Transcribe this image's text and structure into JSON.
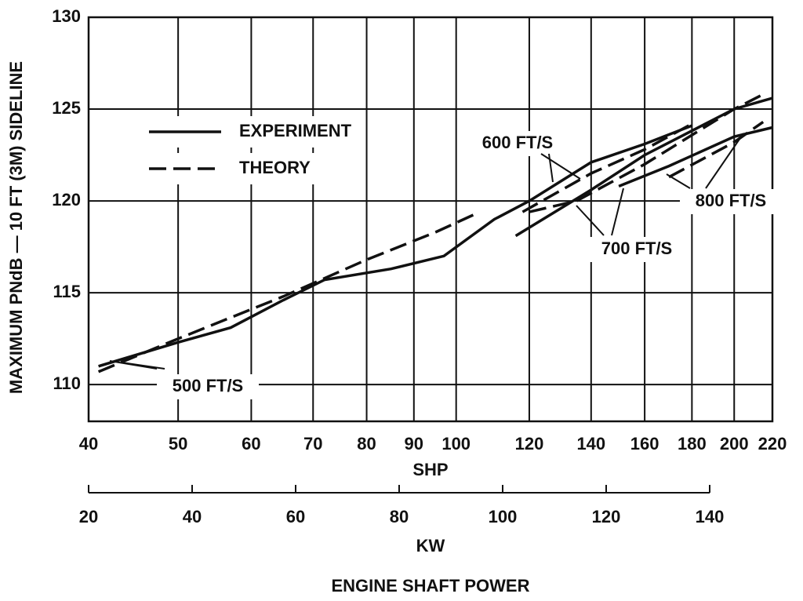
{
  "chart_data": {
    "type": "line",
    "ylabel": "MAXIMUM PNdB — 10 FT (3M) SIDELINE",
    "xlabel": "SHP",
    "x2label": "KW",
    "caption": "ENGINE SHAFT POWER",
    "xscale": "log",
    "xlim": [
      40,
      220
    ],
    "xticks": [
      40,
      50,
      60,
      70,
      80,
      90,
      100,
      120,
      140,
      160,
      180,
      200,
      220
    ],
    "x2lim": [
      20,
      140
    ],
    "x2ticks": [
      20,
      40,
      60,
      80,
      100,
      120,
      140
    ],
    "ylim": [
      108,
      130
    ],
    "yticks": [
      110,
      115,
      120,
      125,
      130
    ],
    "grid": true,
    "legend": [
      {
        "label": "EXPERIMENT",
        "style": "solid"
      },
      {
        "label": "THEORY",
        "style": "dashed"
      }
    ],
    "series": [
      {
        "style": "solid",
        "color": "#111111",
        "x": [
          41,
          50,
          57,
          65,
          72,
          85,
          97,
          110,
          120,
          140,
          160,
          180
        ],
        "values": [
          111,
          112.3,
          113.1,
          114.6,
          115.7,
          116.3,
          117,
          119,
          120,
          122.1,
          123.1,
          124.1
        ]
      },
      {
        "style": "dashed",
        "color": "#111111",
        "x": [
          41,
          50,
          65,
          80,
          95,
          105
        ],
        "values": [
          110.7,
          112.5,
          114.8,
          116.8,
          118.3,
          119.3
        ]
      },
      {
        "style": "dashed",
        "color": "#111111",
        "x": [
          118,
          140,
          160,
          180
        ],
        "values": [
          119.4,
          121.5,
          122.8,
          124.2
        ]
      },
      {
        "style": "solid",
        "color": "#111111",
        "x": [
          116,
          140,
          160,
          200,
          220
        ],
        "values": [
          118.1,
          120.6,
          122.5,
          125,
          125.6
        ]
      },
      {
        "style": "dashed",
        "color": "#111111",
        "x": [
          120,
          135,
          160,
          200,
          215
        ],
        "values": [
          119.4,
          120,
          122,
          125,
          125.8
        ]
      },
      {
        "style": "solid",
        "color": "#111111",
        "x": [
          150,
          170,
          200,
          220
        ],
        "values": [
          120.8,
          121.9,
          123.5,
          124
        ]
      },
      {
        "style": "dashed",
        "color": "#111111",
        "x": [
          170,
          200,
          215
        ],
        "values": [
          121.3,
          123.2,
          124.3
        ]
      }
    ],
    "annotations": [
      "500 FT/S",
      "600 FT/S",
      "700 FT/S",
      "800 FT/S"
    ]
  }
}
